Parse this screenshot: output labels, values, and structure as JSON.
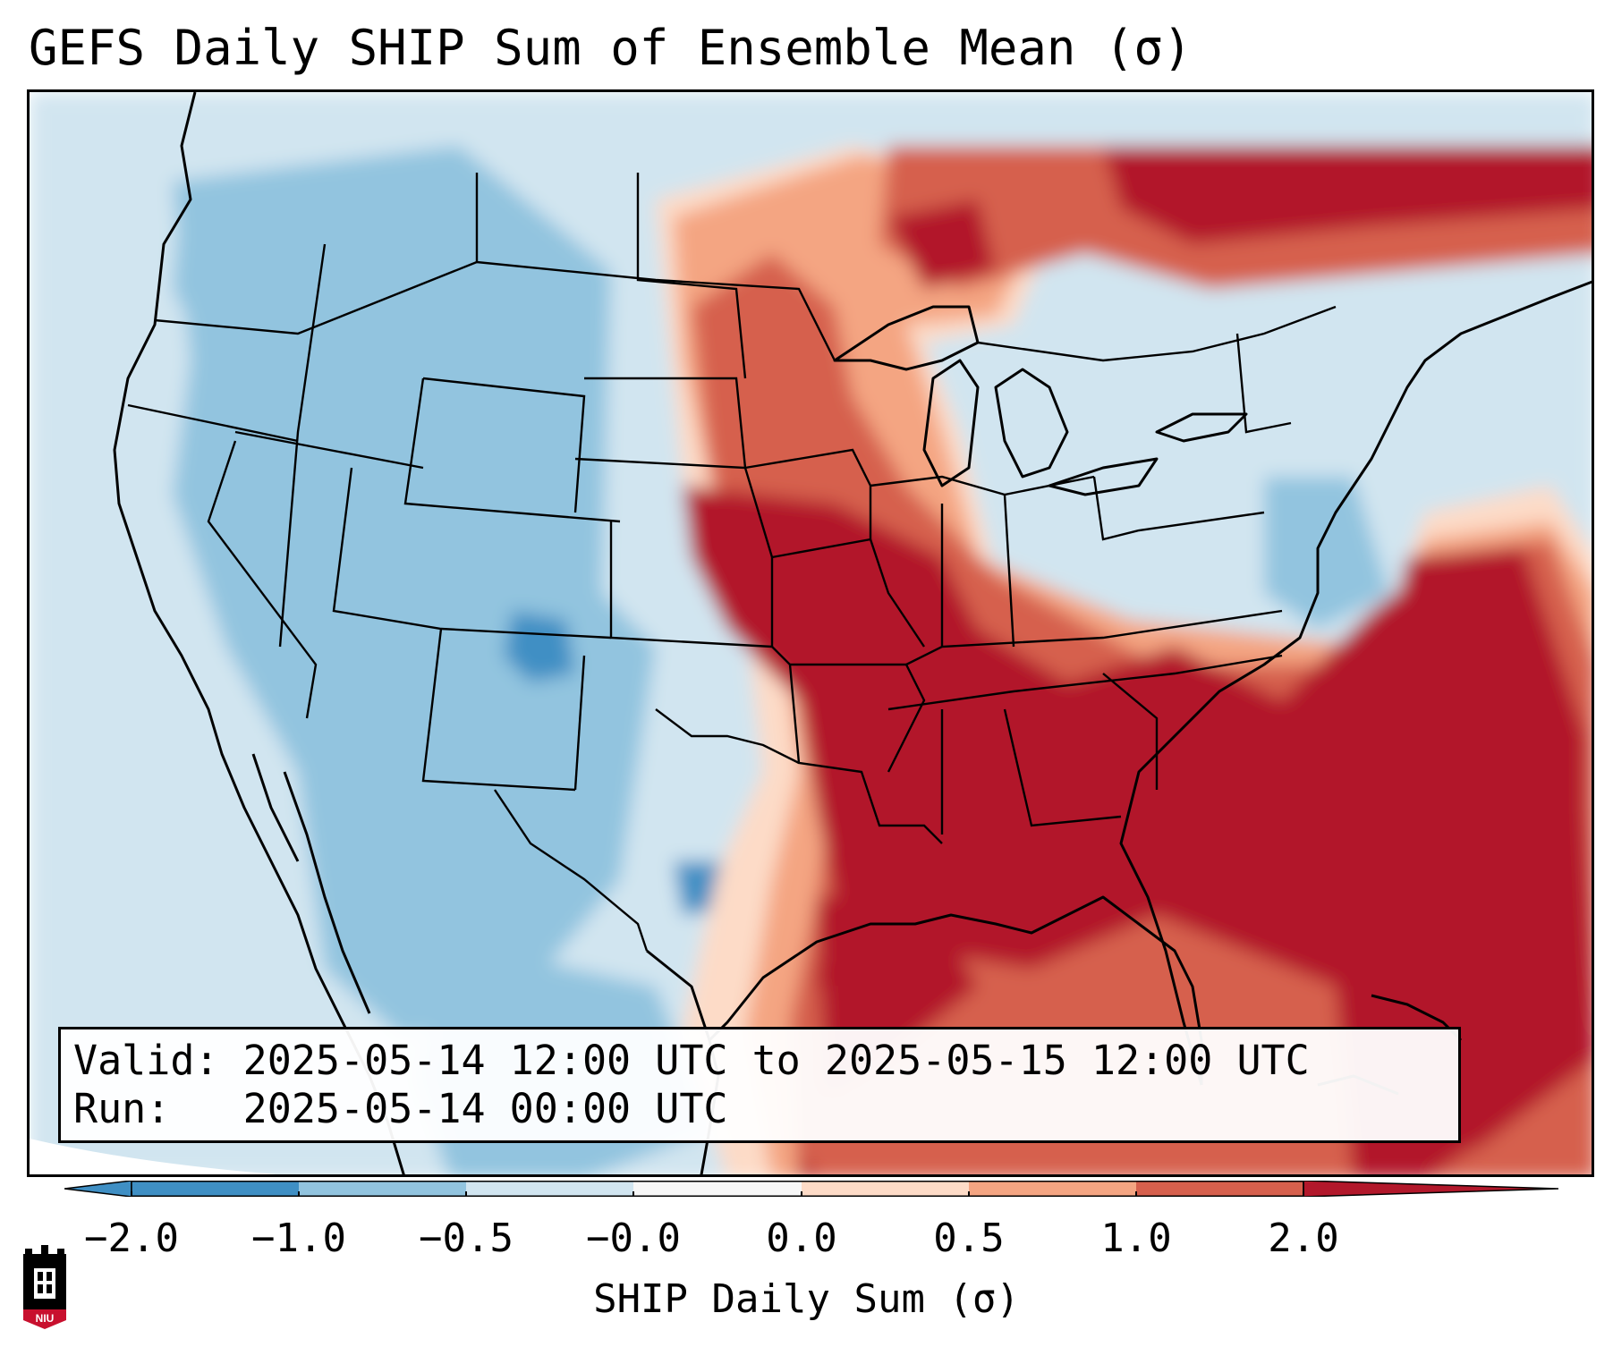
{
  "title": "GEFS Daily SHIP Sum of Ensemble Mean (σ)",
  "info": {
    "valid_label": "Valid:",
    "valid_value": "2025-05-14 12:00 UTC to 2025-05-15 12:00 UTC",
    "run_label": "Run:",
    "run_value": "2025-05-14 00:00 UTC"
  },
  "colorbar": {
    "label": "SHIP Daily Sum (σ)",
    "ticks": [
      "−2.0",
      "−1.0",
      "−0.5",
      "−0.0",
      "0.0",
      "0.5",
      "1.0",
      "2.0"
    ],
    "colors": [
      "#3f8fc4",
      "#92c4df",
      "#d1e5f0",
      "#f7f7f7",
      "#fddbc7",
      "#f4a582",
      "#d6604d",
      "#b2182b"
    ],
    "extend": "both"
  },
  "logo": {
    "text": "NIU",
    "name": "NIU logo",
    "colors": [
      "#c8102e",
      "#000000"
    ]
  },
  "map": {
    "projection": "Lambert conformal, North America",
    "palette": {
      "strong_negative": "#3f8fc4",
      "negative": "#92c4df",
      "weak_negative": "#d1e5f0",
      "weak_positive": "#fddbc7",
      "positive": "#f4a582",
      "moderate_positive": "#d6604d",
      "strong_positive": "#b2182b"
    }
  }
}
